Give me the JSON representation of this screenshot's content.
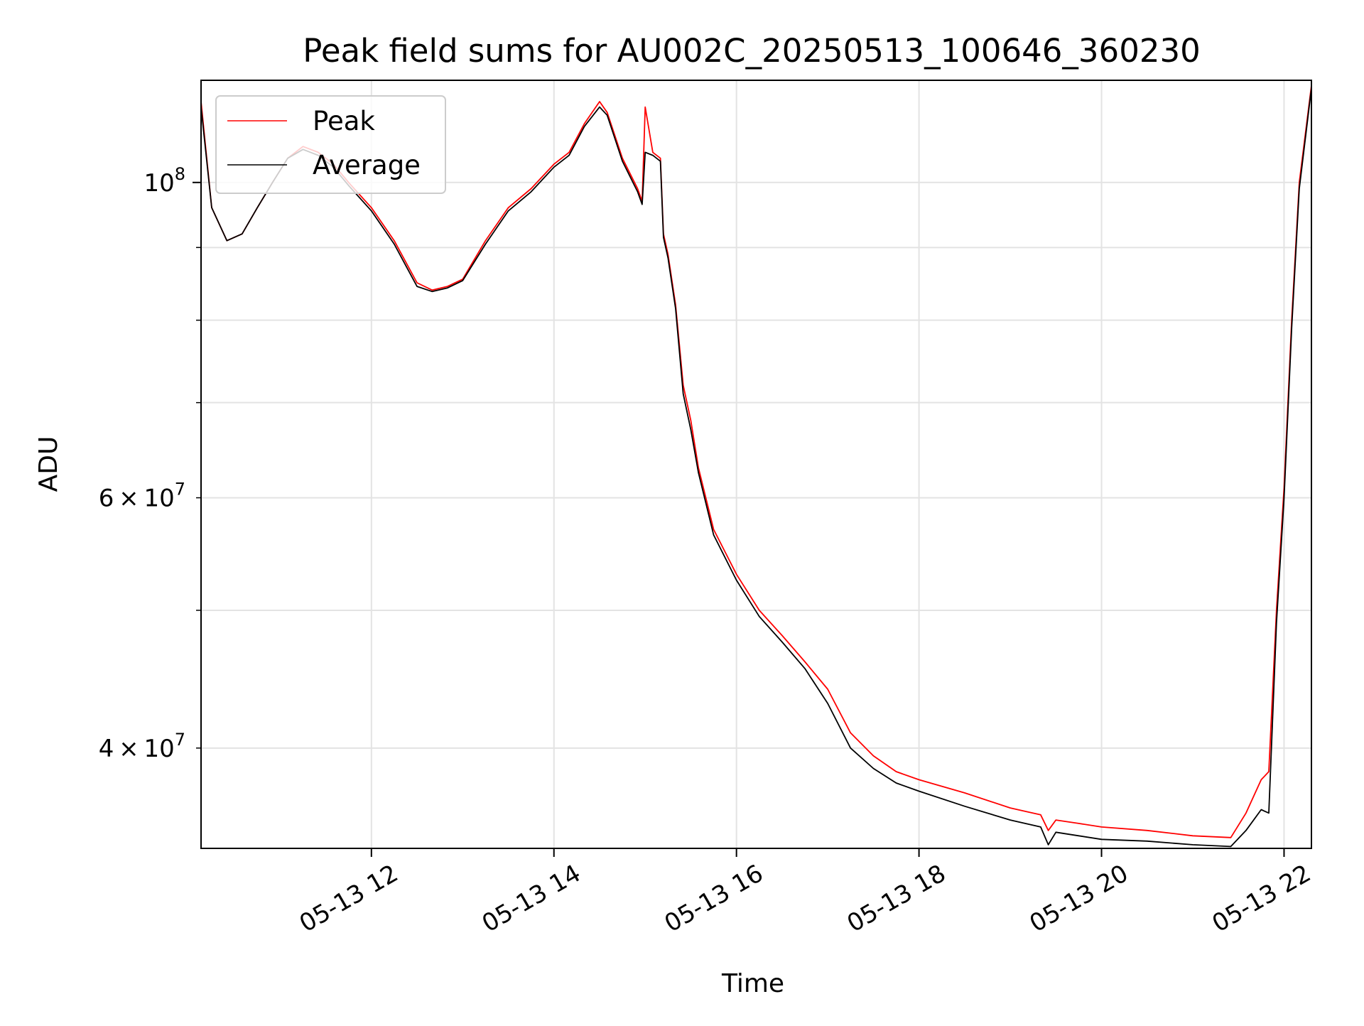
{
  "chart_data": {
    "type": "line",
    "title": "Peak field sums for AU002C_20250513_100646_360230",
    "xlabel": "Time",
    "ylabel": "ADU",
    "x_axis_type": "time",
    "xlim": [
      "2025-05-13 10:08",
      "2025-05-13 22:18"
    ],
    "x_ticks": [
      {
        "value": "2025-05-13 12:00",
        "label": "05-13 12"
      },
      {
        "value": "2025-05-13 14:00",
        "label": "05-13 14"
      },
      {
        "value": "2025-05-13 16:00",
        "label": "05-13 16"
      },
      {
        "value": "2025-05-13 18:00",
        "label": "05-13 18"
      },
      {
        "value": "2025-05-13 20:00",
        "label": "05-13 20"
      },
      {
        "value": "2025-05-13 22:00",
        "label": "05-13 22"
      }
    ],
    "y_scale": "log",
    "ylim": [
      34000000,
      118000000
    ],
    "y_ticks_major": [
      {
        "value": 100000000,
        "base": "10",
        "exp": "8"
      }
    ],
    "y_ticks_minor_labeled": [
      {
        "value": 60000000,
        "mantissa": "6",
        "base": "10",
        "exp": "7"
      },
      {
        "value": 40000000,
        "mantissa": "4",
        "base": "10",
        "exp": "7"
      }
    ],
    "y_ticks_minor_unlabeled": [
      50000000,
      70000000,
      80000000,
      90000000
    ],
    "grid": true,
    "legend_position": "top-left",
    "series": [
      {
        "name": "Peak",
        "color": "#ff0000",
        "x": [
          "2025-05-13 10:08",
          "2025-05-13 10:15",
          "2025-05-13 10:25",
          "2025-05-13 10:35",
          "2025-05-13 10:45",
          "2025-05-13 10:55",
          "2025-05-13 11:05",
          "2025-05-13 11:15",
          "2025-05-13 11:25",
          "2025-05-13 11:35",
          "2025-05-13 11:45",
          "2025-05-13 12:00",
          "2025-05-13 12:15",
          "2025-05-13 12:30",
          "2025-05-13 12:40",
          "2025-05-13 12:50",
          "2025-05-13 13:00",
          "2025-05-13 13:15",
          "2025-05-13 13:30",
          "2025-05-13 13:45",
          "2025-05-13 14:00",
          "2025-05-13 14:10",
          "2025-05-13 14:20",
          "2025-05-13 14:30",
          "2025-05-13 14:35",
          "2025-05-13 14:45",
          "2025-05-13 14:55",
          "2025-05-13 14:58",
          "2025-05-13 15:00",
          "2025-05-13 15:05",
          "2025-05-13 15:10",
          "2025-05-13 15:12",
          "2025-05-13 15:15",
          "2025-05-13 15:20",
          "2025-05-13 15:25",
          "2025-05-13 15:30",
          "2025-05-13 15:35",
          "2025-05-13 15:45",
          "2025-05-13 16:00",
          "2025-05-13 16:15",
          "2025-05-13 16:30",
          "2025-05-13 16:45",
          "2025-05-13 17:00",
          "2025-05-13 17:15",
          "2025-05-13 17:30",
          "2025-05-13 17:45",
          "2025-05-13 18:00",
          "2025-05-13 18:30",
          "2025-05-13 19:00",
          "2025-05-13 19:20",
          "2025-05-13 19:25",
          "2025-05-13 19:30",
          "2025-05-13 19:45",
          "2025-05-13 20:00",
          "2025-05-13 20:30",
          "2025-05-13 21:00",
          "2025-05-13 21:25",
          "2025-05-13 21:35",
          "2025-05-13 21:45",
          "2025-05-13 21:50",
          "2025-05-13 21:55",
          "2025-05-13 22:00",
          "2025-05-13 22:05",
          "2025-05-13 22:10",
          "2025-05-13 22:18"
        ],
        "values": [
          114000000,
          96000000,
          91000000,
          92000000,
          96000000,
          100000000,
          104000000,
          106000000,
          105000000,
          103000000,
          100000000,
          96000000,
          91000000,
          85000000,
          84000000,
          84500000,
          85500000,
          91000000,
          96000000,
          99000000,
          103000000,
          105000000,
          110000000,
          114000000,
          112000000,
          104000000,
          99000000,
          97000000,
          113000000,
          105000000,
          104000000,
          92000000,
          89000000,
          82000000,
          72000000,
          68000000,
          63000000,
          57000000,
          53000000,
          50000000,
          48000000,
          46000000,
          44000000,
          41000000,
          39500000,
          38500000,
          38000000,
          37200000,
          36300000,
          35900000,
          35000000,
          35600000,
          35400000,
          35200000,
          35000000,
          34700000,
          34600000,
          36000000,
          38000000,
          38500000,
          50000000,
          61000000,
          80000000,
          100000000,
          117000000
        ]
      },
      {
        "name": "Average",
        "color": "#000000",
        "x": [
          "2025-05-13 10:08",
          "2025-05-13 10:15",
          "2025-05-13 10:25",
          "2025-05-13 10:35",
          "2025-05-13 10:45",
          "2025-05-13 10:55",
          "2025-05-13 11:05",
          "2025-05-13 11:15",
          "2025-05-13 11:25",
          "2025-05-13 11:35",
          "2025-05-13 11:45",
          "2025-05-13 12:00",
          "2025-05-13 12:15",
          "2025-05-13 12:30",
          "2025-05-13 12:40",
          "2025-05-13 12:50",
          "2025-05-13 13:00",
          "2025-05-13 13:15",
          "2025-05-13 13:30",
          "2025-05-13 13:45",
          "2025-05-13 14:00",
          "2025-05-13 14:10",
          "2025-05-13 14:20",
          "2025-05-13 14:30",
          "2025-05-13 14:35",
          "2025-05-13 14:45",
          "2025-05-13 14:55",
          "2025-05-13 14:58",
          "2025-05-13 15:00",
          "2025-05-13 15:05",
          "2025-05-13 15:10",
          "2025-05-13 15:12",
          "2025-05-13 15:15",
          "2025-05-13 15:20",
          "2025-05-13 15:25",
          "2025-05-13 15:30",
          "2025-05-13 15:35",
          "2025-05-13 15:45",
          "2025-05-13 16:00",
          "2025-05-13 16:15",
          "2025-05-13 16:30",
          "2025-05-13 16:45",
          "2025-05-13 17:00",
          "2025-05-13 17:15",
          "2025-05-13 17:30",
          "2025-05-13 17:45",
          "2025-05-13 18:00",
          "2025-05-13 18:30",
          "2025-05-13 19:00",
          "2025-05-13 19:20",
          "2025-05-13 19:25",
          "2025-05-13 19:30",
          "2025-05-13 19:45",
          "2025-05-13 20:00",
          "2025-05-13 20:30",
          "2025-05-13 21:00",
          "2025-05-13 21:25",
          "2025-05-13 21:35",
          "2025-05-13 21:45",
          "2025-05-13 21:50",
          "2025-05-13 21:55",
          "2025-05-13 22:00",
          "2025-05-13 22:05",
          "2025-05-13 22:10",
          "2025-05-13 22:18"
        ],
        "values": [
          113000000,
          96000000,
          91000000,
          92000000,
          96000000,
          100000000,
          104000000,
          105500000,
          104500000,
          102500000,
          99500000,
          95500000,
          90500000,
          84500000,
          83800000,
          84300000,
          85300000,
          90500000,
          95500000,
          98500000,
          102500000,
          104500000,
          109500000,
          113000000,
          111500000,
          103500000,
          98500000,
          96500000,
          105000000,
          104500000,
          103500000,
          91500000,
          88500000,
          81500000,
          71000000,
          67000000,
          62500000,
          56500000,
          52500000,
          49500000,
          47500000,
          45500000,
          43000000,
          40000000,
          38700000,
          37800000,
          37300000,
          36400000,
          35600000,
          35200000,
          34200000,
          34900000,
          34700000,
          34500000,
          34400000,
          34200000,
          34100000,
          35000000,
          36200000,
          36000000,
          49000000,
          60000000,
          79000000,
          99000000,
          116500000
        ]
      }
    ]
  }
}
